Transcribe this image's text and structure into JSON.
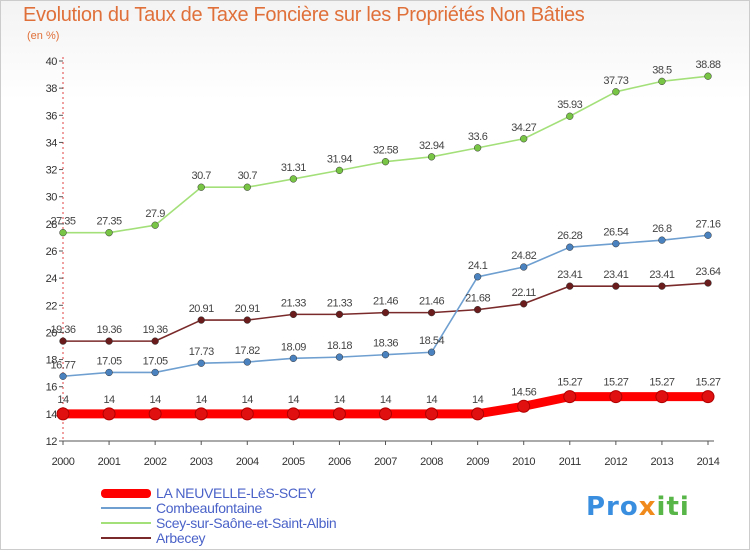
{
  "title": "Evolution du Taux de Taxe Foncière sur les Propriétés Non Bâties",
  "subtitle": "(en %)",
  "logo": {
    "parts": [
      "Pro",
      "x",
      "iti"
    ],
    "colors": [
      "#3a8ee0",
      "#f08a1c",
      "#58b548"
    ]
  },
  "chart_data": {
    "type": "line",
    "title": "Evolution du Taux de Taxe Foncière sur les Propriétés Non Bâties",
    "ylabel": "(en %)",
    "xlabel": "",
    "x": [
      "2000",
      "2001",
      "2002",
      "2003",
      "2004",
      "2005",
      "2006",
      "2007",
      "2008",
      "2009",
      "2010",
      "2011",
      "2012",
      "2013",
      "2014"
    ],
    "ylim": [
      12,
      40
    ],
    "yticks": [
      "12",
      "14",
      "16",
      "18",
      "20",
      "22",
      "24",
      "26",
      "28",
      "30",
      "32",
      "34",
      "36",
      "38",
      "40"
    ],
    "grid": false,
    "legend_position": "bottom-left",
    "series": [
      {
        "name": "LA NEUVELLE-LèS-SCEY",
        "color": "#ff0000",
        "marker": "#e01010",
        "values": [
          14,
          14,
          14,
          14,
          14,
          14,
          14,
          14,
          14,
          14,
          14.56,
          15.27,
          15.27,
          15.27,
          15.27
        ],
        "labels": [
          "14",
          "14",
          "14",
          "14",
          "14",
          "14",
          "14",
          "14",
          "14",
          "14",
          "14.56",
          "15.27",
          "15.27",
          "15.27",
          "15.27"
        ]
      },
      {
        "name": "Combeaufontaine",
        "color": "#6e9fd0",
        "marker": "#4a82c0",
        "values": [
          16.77,
          17.05,
          17.05,
          17.73,
          17.82,
          18.09,
          18.18,
          18.36,
          18.54,
          24.1,
          24.82,
          26.28,
          26.54,
          26.8,
          27.16
        ],
        "labels": [
          "16.77",
          "17.05",
          "17.05",
          "17.73",
          "17.82",
          "18.09",
          "18.18",
          "18.36",
          "18.54",
          "24.1",
          "24.82",
          "26.28",
          "26.54",
          "26.8",
          "27.16"
        ]
      },
      {
        "name": "Scey-sur-Saône-et-Saint-Albin",
        "color": "#a4e07a",
        "marker": "#78c444",
        "values": [
          27.35,
          27.35,
          27.9,
          30.7,
          30.7,
          31.31,
          31.94,
          32.58,
          32.94,
          33.6,
          34.27,
          35.93,
          37.73,
          38.5,
          38.88
        ],
        "labels": [
          "27.35",
          "27.35",
          "27.9",
          "30.7",
          "30.7",
          "31.31",
          "31.94",
          "32.58",
          "32.94",
          "33.6",
          "34.27",
          "35.93",
          "37.73",
          "38.5",
          "38.88"
        ]
      },
      {
        "name": "Arbecey",
        "color": "#7a2a2a",
        "marker": "#6a1c1c",
        "values": [
          19.36,
          19.36,
          19.36,
          20.91,
          20.91,
          21.33,
          21.33,
          21.46,
          21.46,
          21.68,
          22.11,
          23.41,
          23.41,
          23.41,
          23.64
        ],
        "labels": [
          "19.36",
          "19.36",
          "19.36",
          "20.91",
          "20.91",
          "21.33",
          "21.33",
          "21.46",
          "21.46",
          "21.68",
          "22.11",
          "23.41",
          "23.41",
          "23.41",
          "23.64"
        ]
      }
    ]
  }
}
